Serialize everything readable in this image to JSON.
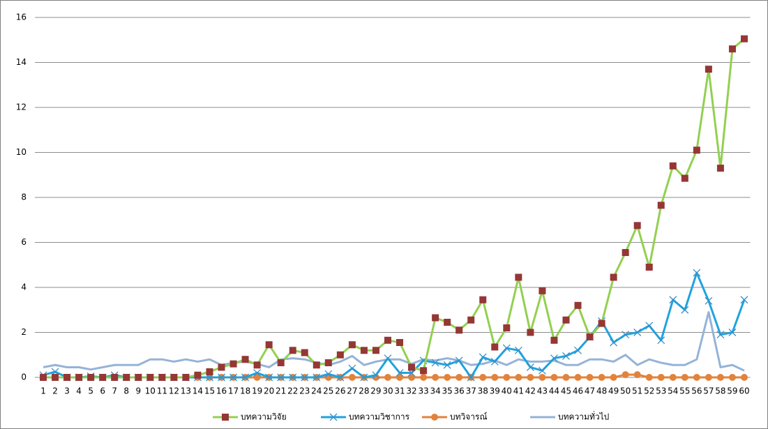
{
  "chart_data": {
    "type": "line",
    "categories": [
      "1",
      "2",
      "3",
      "4",
      "5",
      "6",
      "7",
      "8",
      "9",
      "10",
      "11",
      "12",
      "13",
      "14",
      "15",
      "16",
      "17",
      "18",
      "19",
      "20",
      "21",
      "22",
      "23",
      "24",
      "25",
      "26",
      "27",
      "28",
      "29",
      "30",
      "31",
      "32",
      "33",
      "34",
      "35",
      "36",
      "37",
      "38",
      "39",
      "40",
      "41",
      "42",
      "43",
      "44",
      "45",
      "46",
      "47",
      "48",
      "49",
      "50",
      "51",
      "52",
      "53",
      "54",
      "55",
      "56",
      "57",
      "58",
      "59",
      "60"
    ],
    "series": [
      {
        "name": "บทความวิจัย",
        "color": "#92d050",
        "marker": "square",
        "marker_color": "#953735",
        "values": [
          0,
          0,
          0,
          0,
          0,
          0,
          0,
          0,
          0,
          0,
          0,
          0,
          0,
          0.1,
          0.25,
          0.45,
          0.6,
          0.8,
          0.55,
          1.45,
          0.65,
          1.2,
          1.1,
          0.55,
          0.65,
          1.0,
          1.45,
          1.2,
          1.2,
          1.65,
          1.55,
          0.45,
          0.3,
          2.65,
          2.45,
          2.1,
          2.55,
          3.45,
          1.35,
          2.2,
          4.45,
          2.0,
          3.85,
          1.65,
          2.55,
          3.2,
          1.8,
          2.4,
          4.45,
          5.55,
          6.75,
          4.9,
          7.65,
          9.4,
          8.85,
          10.1,
          13.7,
          9.3,
          14.6,
          15.05
        ]
      },
      {
        "name": "บทความวิชาการ",
        "color": "#1ea3e0",
        "marker": "x",
        "marker_color": "#3a8fc7",
        "values": [
          0.1,
          0.25,
          0,
          0,
          0.05,
          0,
          0.1,
          0,
          0,
          0,
          0,
          0,
          0,
          0,
          0,
          0,
          0,
          0,
          0.2,
          0,
          0,
          0,
          0,
          0,
          0.15,
          0,
          0.4,
          0,
          0.1,
          0.85,
          0.2,
          0.2,
          0.75,
          0.65,
          0.55,
          0.75,
          0,
          0.9,
          0.7,
          1.3,
          1.2,
          0.45,
          0.3,
          0.85,
          0.95,
          1.2,
          1.8,
          2.5,
          1.55,
          1.9,
          2.0,
          2.3,
          1.65,
          3.45,
          3.0,
          4.65,
          3.4,
          1.9,
          2.0,
          3.45
        ]
      },
      {
        "name": "บทวิจารณ์",
        "color": "#e3823a",
        "marker": "circle",
        "marker_color": "#e3823a",
        "values": [
          0,
          0,
          0,
          0,
          0,
          0,
          0,
          0,
          0,
          0,
          0,
          0,
          0,
          0,
          0,
          0,
          0,
          0,
          0,
          0,
          0,
          0,
          0,
          0,
          0,
          0,
          0,
          0,
          0,
          0,
          0,
          0,
          0,
          0,
          0,
          0,
          0,
          0,
          0,
          0,
          0,
          0,
          0,
          0,
          0,
          0,
          0,
          0,
          0,
          0.12,
          0.12,
          0,
          0,
          0,
          0,
          0,
          0,
          0,
          0,
          0
        ]
      },
      {
        "name": "บทความทั่วไป",
        "color": "#95b3d7",
        "marker": "none",
        "marker_color": "#95b3d7",
        "values": [
          0.45,
          0.55,
          0.45,
          0.45,
          0.35,
          0.45,
          0.55,
          0.55,
          0.55,
          0.8,
          0.8,
          0.7,
          0.8,
          0.7,
          0.8,
          0.55,
          0.65,
          0.7,
          0.6,
          0.45,
          0.8,
          0.85,
          0.8,
          0.65,
          0.55,
          0.7,
          0.95,
          0.55,
          0.7,
          0.8,
          0.8,
          0.6,
          0.8,
          0.75,
          0.85,
          0.75,
          0.55,
          0.6,
          0.75,
          0.55,
          0.8,
          0.7,
          0.7,
          0.75,
          0.55,
          0.55,
          0.8,
          0.8,
          0.7,
          1.0,
          0.55,
          0.8,
          0.65,
          0.55,
          0.55,
          0.8,
          2.9,
          0.45,
          0.55,
          0.3
        ]
      }
    ],
    "ylim": [
      0,
      16
    ],
    "yticks": [
      0,
      2,
      4,
      6,
      8,
      10,
      12,
      14,
      16
    ],
    "grid": true,
    "legend": "bottom"
  }
}
